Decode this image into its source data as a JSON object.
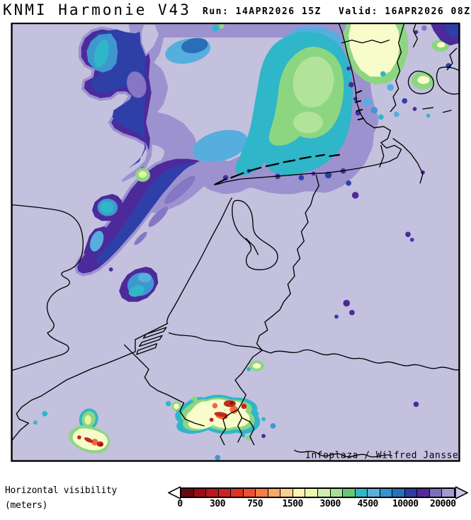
{
  "header": {
    "title": "KNMI Harmonie V43",
    "run": "Run: 14APR2026 15Z",
    "valid": "Valid: 16APR2026 08Z"
  },
  "map": {
    "attribution": "Infoplaza / Wilfred Janssen",
    "palette": {
      "background_no_fog": "#c3c1de",
      "halo_light_purple": "#9d92d0",
      "band_purple": "#4c2a9c",
      "band_indigo": "#2e3fa8",
      "fog_blue": "#3f97d0",
      "fog_light_blue": "#56aede",
      "fog_teal": "#2fb6c8",
      "fog_green": "#8cd682",
      "fog_pale_yellow": "#f8fcca",
      "fog_orange": "#ec6a3a",
      "fog_red": "#c4281e",
      "coastline": "#000000"
    }
  },
  "legend": {
    "label_line1": "Horizontal visibility",
    "label_line2": "(meters)",
    "ticks": [
      "0",
      "300",
      "750",
      "1500",
      "3000",
      "4500",
      "10000",
      "20000"
    ],
    "tick_interval_cells": 3,
    "colors": [
      "#6b0711",
      "#9c0c14",
      "#bb161d",
      "#cc2320",
      "#dd3226",
      "#ea5232",
      "#f47d48",
      "#f9a863",
      "#fccf92",
      "#fdf4b0",
      "#eef8ac",
      "#d2eeae",
      "#a8df97",
      "#66c873",
      "#2fb7c8",
      "#58b0dc",
      "#3492cc",
      "#2472bc",
      "#2e3ba2",
      "#5527a0",
      "#7f6fba",
      "#a49ad2"
    ],
    "arrow_left_fill": "#ffffff",
    "arrow_right_fill": "#c9c3e8"
  }
}
